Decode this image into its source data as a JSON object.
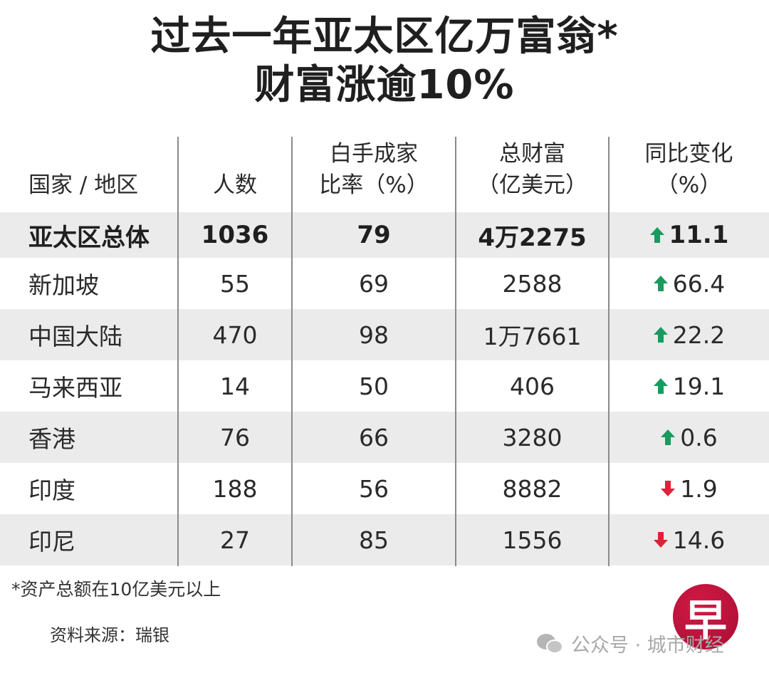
{
  "title": {
    "line1": "过去一年亚太区亿万富翁*",
    "line2": "财富涨逾10%"
  },
  "table": {
    "headers": [
      {
        "line1": "",
        "line2": "国家 / 地区"
      },
      {
        "line1": "",
        "line2": "人数"
      },
      {
        "line1": "白手成家",
        "line2": "比率（%）"
      },
      {
        "line1": "总财富",
        "line2": "（亿美元）"
      },
      {
        "line1": "同比变化",
        "line2": "（%）"
      }
    ],
    "total": {
      "region": "亚太区总体",
      "count": "1036",
      "self_made": "79",
      "wealth": "4万2275",
      "change": "11.1",
      "direction": "up"
    },
    "rows": [
      {
        "region": "新加坡",
        "count": "55",
        "self_made": "69",
        "wealth": "2588",
        "change": "66.4",
        "direction": "up"
      },
      {
        "region": "中国大陆",
        "count": "470",
        "self_made": "98",
        "wealth": "1万7661",
        "change": "22.2",
        "direction": "up"
      },
      {
        "region": "马来西亚",
        "count": "14",
        "self_made": "50",
        "wealth": "406",
        "change": "19.1",
        "direction": "up"
      },
      {
        "region": "香港",
        "count": "76",
        "self_made": "66",
        "wealth": "3280",
        "change": "0.6",
        "direction": "up"
      },
      {
        "region": "印度",
        "count": "188",
        "self_made": "56",
        "wealth": "8882",
        "change": "1.9",
        "direction": "down"
      },
      {
        "region": "印尼",
        "count": "27",
        "self_made": "85",
        "wealth": "1556",
        "change": "14.6",
        "direction": "down"
      }
    ]
  },
  "footnote": "*资产总额在10亿美元以上",
  "source": "资料来源：瑞银",
  "logo": {
    "glyph": "早"
  },
  "watermark": "公众号 · 城市财经",
  "colors": {
    "up": "#1a9a5f",
    "down": "#e0213a",
    "shade": "#ebebeb",
    "logo": "#c0143d"
  },
  "chart_data": {
    "type": "table",
    "title": "过去一年亚太区亿万富翁*财富涨逾10%",
    "columns": [
      "国家 / 地区",
      "人数",
      "白手成家比率（%）",
      "总财富（亿美元）",
      "同比变化（%）"
    ],
    "rows": [
      [
        "亚太区总体",
        1036,
        79,
        42275,
        11.1
      ],
      [
        "新加坡",
        55,
        69,
        2588,
        66.4
      ],
      [
        "中国大陆",
        470,
        98,
        17661,
        22.2
      ],
      [
        "马来西亚",
        14,
        50,
        406,
        19.1
      ],
      [
        "香港",
        76,
        66,
        3280,
        0.6
      ],
      [
        "印度",
        188,
        56,
        8882,
        -1.9
      ],
      [
        "印尼",
        27,
        85,
        1556,
        -14.6
      ]
    ],
    "notes": [
      "*资产总额在10亿美元以上",
      "资料来源：瑞银"
    ]
  }
}
